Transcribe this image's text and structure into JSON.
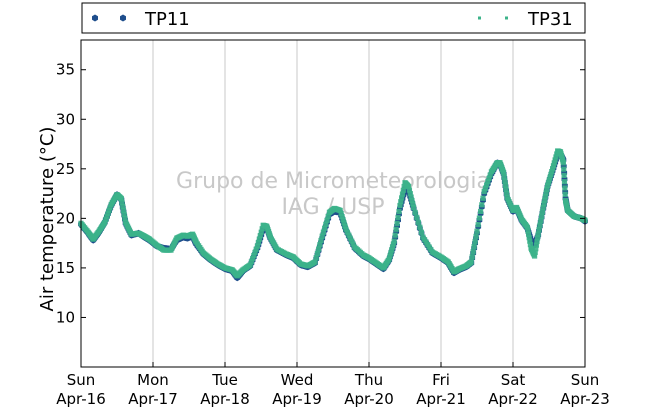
{
  "chart_data": {
    "type": "scatter",
    "title": "",
    "ylabel": "Air temperature (°C)",
    "xlabel": "",
    "ylim": [
      5,
      38
    ],
    "yticks": [
      10,
      15,
      20,
      25,
      30,
      35
    ],
    "x_ticks": [
      {
        "day": 0,
        "weekday": "Sun",
        "date": "Apr-16"
      },
      {
        "day": 1,
        "weekday": "Mon",
        "date": "Apr-17"
      },
      {
        "day": 2,
        "weekday": "Tue",
        "date": "Apr-18"
      },
      {
        "day": 3,
        "weekday": "Wed",
        "date": "Apr-19"
      },
      {
        "day": 4,
        "weekday": "Thu",
        "date": "Apr-20"
      },
      {
        "day": 5,
        "weekday": "Fri",
        "date": "Apr-21"
      },
      {
        "day": 6,
        "weekday": "Sat",
        "date": "Apr-22"
      },
      {
        "day": 7,
        "weekday": "Sun",
        "date": "Apr-23"
      }
    ],
    "grid": "vertical",
    "legend_position": "top",
    "watermark": [
      "Grupo de Micrometeorologia",
      "IAG / USP"
    ],
    "series": [
      {
        "name": "TP11",
        "color": "#1f4e8c",
        "marker": "hexagon",
        "points": [
          [
            0.0,
            19.4
          ],
          [
            0.1,
            18.5
          ],
          [
            0.17,
            17.8
          ],
          [
            0.25,
            18.6
          ],
          [
            0.33,
            19.6
          ],
          [
            0.42,
            21.3
          ],
          [
            0.5,
            22.4
          ],
          [
            0.56,
            21.9
          ],
          [
            0.62,
            19.5
          ],
          [
            0.7,
            18.3
          ],
          [
            0.8,
            18.5
          ],
          [
            0.88,
            18.1
          ],
          [
            0.95,
            17.8
          ],
          [
            1.05,
            17.2
          ],
          [
            1.15,
            17.0
          ],
          [
            1.25,
            16.9
          ],
          [
            1.33,
            17.8
          ],
          [
            1.42,
            18.1
          ],
          [
            1.48,
            18.0
          ],
          [
            1.55,
            18.2
          ],
          [
            1.6,
            17.4
          ],
          [
            1.7,
            16.4
          ],
          [
            1.8,
            15.8
          ],
          [
            1.9,
            15.3
          ],
          [
            2.0,
            14.9
          ],
          [
            2.1,
            14.7
          ],
          [
            2.17,
            14.0
          ],
          [
            2.25,
            14.7
          ],
          [
            2.35,
            15.2
          ],
          [
            2.45,
            17.0
          ],
          [
            2.53,
            19.0
          ],
          [
            2.58,
            19.1
          ],
          [
            2.63,
            18.0
          ],
          [
            2.72,
            16.8
          ],
          [
            2.85,
            16.3
          ],
          [
            2.95,
            16.0
          ],
          [
            3.05,
            15.3
          ],
          [
            3.15,
            15.1
          ],
          [
            3.25,
            15.5
          ],
          [
            3.35,
            18.0
          ],
          [
            3.45,
            20.4
          ],
          [
            3.52,
            20.7
          ],
          [
            3.6,
            20.6
          ],
          [
            3.68,
            18.8
          ],
          [
            3.8,
            17.0
          ],
          [
            3.92,
            16.2
          ],
          [
            4.0,
            15.9
          ],
          [
            4.1,
            15.4
          ],
          [
            4.2,
            14.9
          ],
          [
            4.28,
            15.8
          ],
          [
            4.35,
            17.5
          ],
          [
            4.43,
            21.0
          ],
          [
            4.5,
            23.0
          ],
          [
            4.55,
            22.8
          ],
          [
            4.62,
            21.0
          ],
          [
            4.75,
            18.0
          ],
          [
            4.88,
            16.5
          ],
          [
            5.0,
            16.0
          ],
          [
            5.1,
            15.5
          ],
          [
            5.18,
            14.5
          ],
          [
            5.25,
            14.8
          ],
          [
            5.35,
            15.1
          ],
          [
            5.42,
            15.5
          ],
          [
            5.5,
            18.5
          ],
          [
            5.6,
            22.5
          ],
          [
            5.7,
            24.5
          ],
          [
            5.78,
            25.6
          ],
          [
            5.82,
            25.5
          ],
          [
            5.87,
            24.5
          ],
          [
            5.92,
            22.0
          ],
          [
            6.0,
            20.7
          ],
          [
            6.05,
            21.0
          ],
          [
            6.12,
            19.8
          ],
          [
            6.2,
            19.0
          ],
          [
            6.25,
            17.8
          ],
          [
            6.3,
            17.3
          ],
          [
            6.35,
            18.3
          ],
          [
            6.42,
            21.0
          ],
          [
            6.48,
            23.2
          ],
          [
            6.55,
            24.8
          ],
          [
            6.62,
            26.5
          ],
          [
            6.66,
            26.5
          ],
          [
            6.7,
            25.9
          ],
          [
            6.73,
            22.0
          ],
          [
            6.76,
            20.8
          ],
          [
            6.85,
            20.2
          ],
          [
            6.95,
            20.0
          ],
          [
            7.0,
            19.7
          ]
        ]
      },
      {
        "name": "TP31",
        "color": "#3cb38a",
        "marker": "square",
        "points": [
          [
            0.0,
            19.5
          ],
          [
            0.1,
            18.6
          ],
          [
            0.17,
            17.9
          ],
          [
            0.25,
            18.7
          ],
          [
            0.33,
            19.6
          ],
          [
            0.42,
            21.4
          ],
          [
            0.5,
            22.4
          ],
          [
            0.56,
            22.0
          ],
          [
            0.62,
            19.6
          ],
          [
            0.7,
            18.4
          ],
          [
            0.8,
            18.5
          ],
          [
            0.88,
            18.2
          ],
          [
            0.95,
            17.9
          ],
          [
            1.05,
            17.3
          ],
          [
            1.15,
            16.8
          ],
          [
            1.25,
            16.8
          ],
          [
            1.33,
            18.0
          ],
          [
            1.42,
            18.3
          ],
          [
            1.48,
            18.2
          ],
          [
            1.55,
            18.4
          ],
          [
            1.6,
            17.6
          ],
          [
            1.7,
            16.5
          ],
          [
            1.8,
            15.9
          ],
          [
            1.9,
            15.4
          ],
          [
            2.0,
            15.0
          ],
          [
            2.1,
            14.8
          ],
          [
            2.17,
            14.2
          ],
          [
            2.25,
            14.8
          ],
          [
            2.35,
            15.3
          ],
          [
            2.45,
            17.2
          ],
          [
            2.53,
            19.3
          ],
          [
            2.58,
            19.2
          ],
          [
            2.63,
            18.1
          ],
          [
            2.72,
            16.9
          ],
          [
            2.85,
            16.4
          ],
          [
            2.95,
            16.1
          ],
          [
            3.05,
            15.4
          ],
          [
            3.15,
            15.2
          ],
          [
            3.25,
            15.6
          ],
          [
            3.35,
            18.2
          ],
          [
            3.45,
            20.6
          ],
          [
            3.52,
            21.0
          ],
          [
            3.6,
            20.8
          ],
          [
            3.68,
            18.9
          ],
          [
            3.8,
            17.1
          ],
          [
            3.92,
            16.3
          ],
          [
            4.0,
            16.0
          ],
          [
            4.1,
            15.5
          ],
          [
            4.2,
            15.0
          ],
          [
            4.28,
            15.9
          ],
          [
            4.35,
            17.7
          ],
          [
            4.43,
            21.3
          ],
          [
            4.5,
            23.6
          ],
          [
            4.55,
            23.2
          ],
          [
            4.62,
            21.1
          ],
          [
            4.75,
            18.1
          ],
          [
            4.88,
            16.6
          ],
          [
            5.0,
            16.1
          ],
          [
            5.1,
            15.6
          ],
          [
            5.18,
            14.6
          ],
          [
            5.25,
            14.9
          ],
          [
            5.35,
            15.2
          ],
          [
            5.42,
            15.6
          ],
          [
            5.5,
            18.7
          ],
          [
            5.6,
            22.7
          ],
          [
            5.7,
            24.7
          ],
          [
            5.78,
            25.6
          ],
          [
            5.82,
            25.6
          ],
          [
            5.87,
            24.6
          ],
          [
            5.92,
            22.1
          ],
          [
            6.0,
            20.8
          ],
          [
            6.05,
            21.1
          ],
          [
            6.12,
            19.9
          ],
          [
            6.2,
            19.1
          ],
          [
            6.25,
            17.0
          ],
          [
            6.3,
            16.2
          ],
          [
            6.35,
            18.4
          ],
          [
            6.42,
            21.1
          ],
          [
            6.48,
            23.3
          ],
          [
            6.55,
            25.0
          ],
          [
            6.62,
            26.8
          ],
          [
            6.66,
            26.7
          ],
          [
            6.7,
            25.6
          ],
          [
            6.73,
            21.8
          ],
          [
            6.76,
            20.8
          ],
          [
            6.85,
            20.2
          ],
          [
            6.95,
            20.0
          ],
          [
            7.0,
            19.8
          ]
        ]
      }
    ]
  }
}
